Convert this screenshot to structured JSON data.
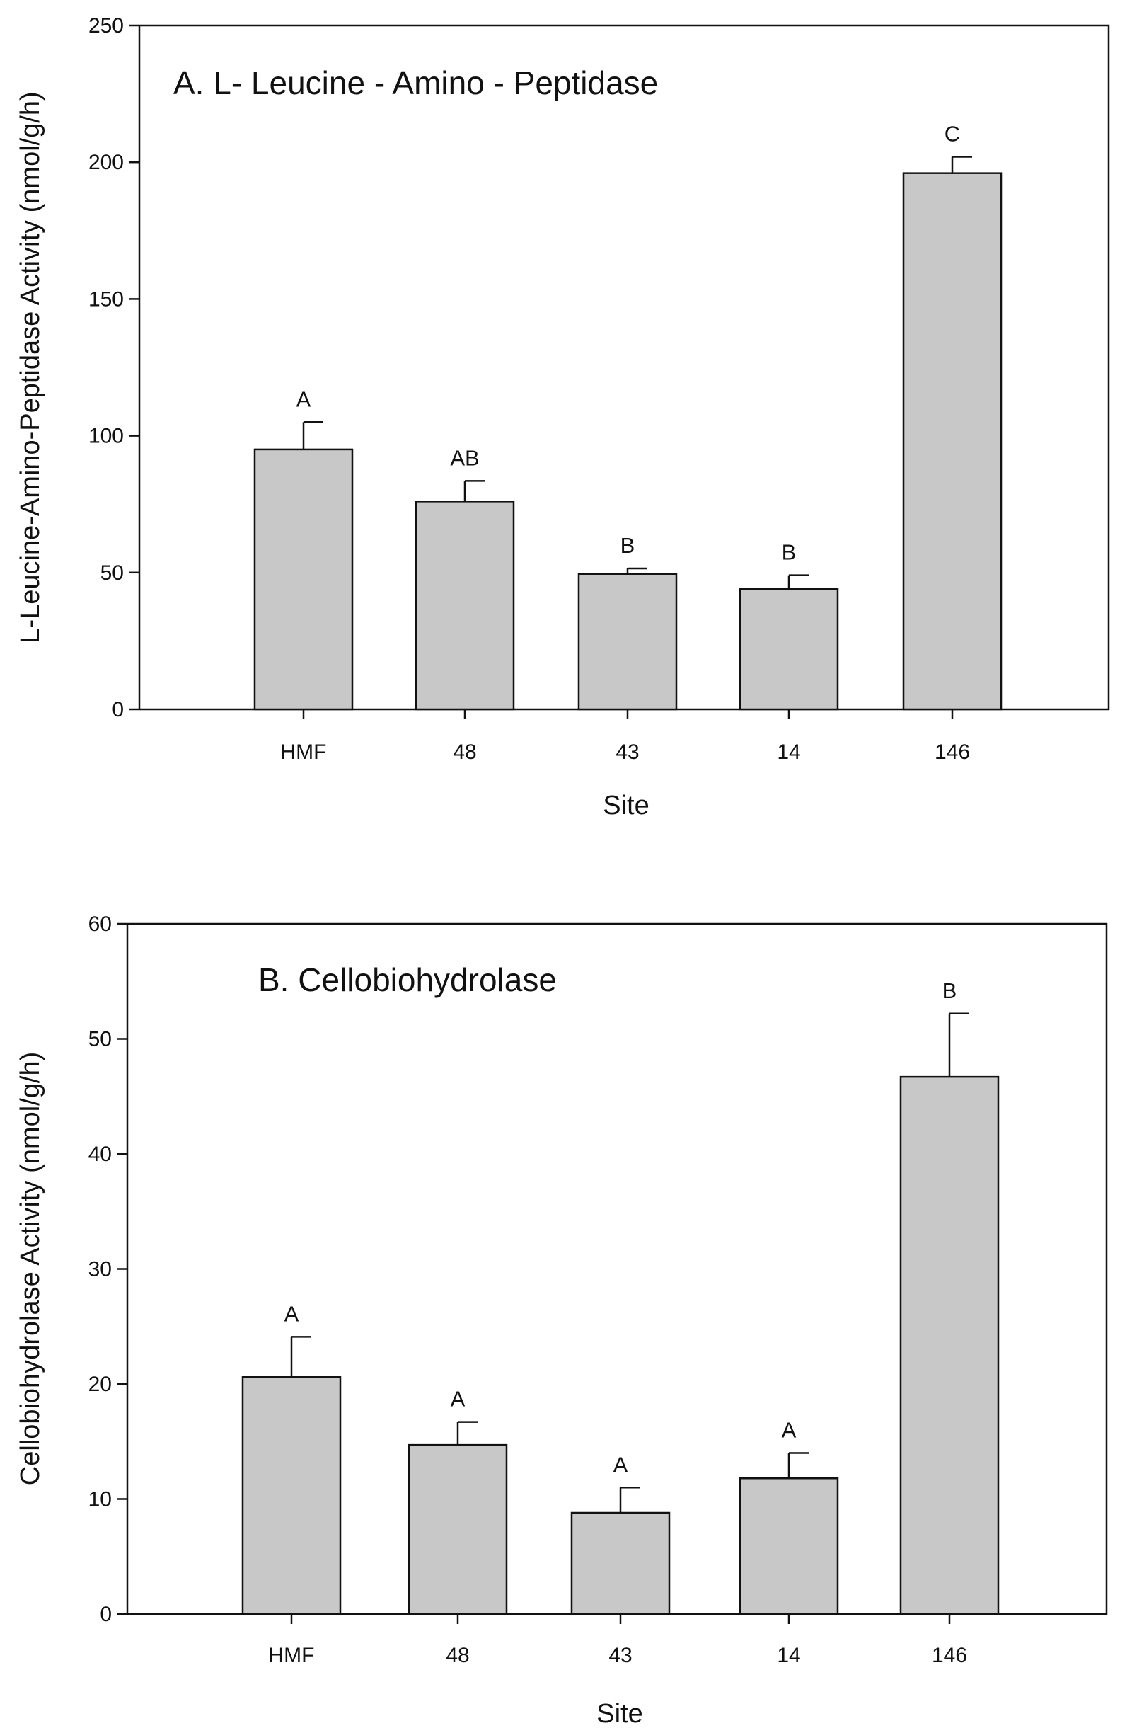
{
  "chart_data": [
    {
      "type": "bar",
      "title": "A.  L- Leucine - Amino - Peptidase",
      "xlabel": "Site",
      "ylabel": "L-Leucine-Amino-Peptidase Activity (nmol/g/h)",
      "categories": [
        "HMF",
        "48",
        "43",
        "14",
        "146"
      ],
      "values": [
        95,
        76,
        49.5,
        44,
        196
      ],
      "errors": [
        10,
        7.5,
        2,
        5,
        6
      ],
      "significance": [
        "A",
        "AB",
        "B",
        "B",
        "C"
      ],
      "ylim": [
        0,
        250
      ],
      "yticks": [
        0,
        50,
        100,
        150,
        200,
        250
      ],
      "bar_color": "#c8c8c8",
      "grid": false
    },
    {
      "type": "bar",
      "title": "B. Cellobiohydrolase",
      "xlabel": "Site",
      "ylabel": "Cellobiohydrolase Activity (nmol/g/h)",
      "categories": [
        "HMF",
        "48",
        "43",
        "14",
        "146"
      ],
      "values": [
        20.6,
        14.7,
        8.8,
        11.8,
        46.7
      ],
      "errors": [
        3.5,
        2,
        2.2,
        2.2,
        5.5
      ],
      "significance": [
        "A",
        "A",
        "A",
        "A",
        "B"
      ],
      "ylim": [
        0,
        60
      ],
      "yticks": [
        0,
        10,
        20,
        30,
        40,
        50,
        60
      ],
      "bar_color": "#c8c8c8",
      "grid": false
    }
  ]
}
